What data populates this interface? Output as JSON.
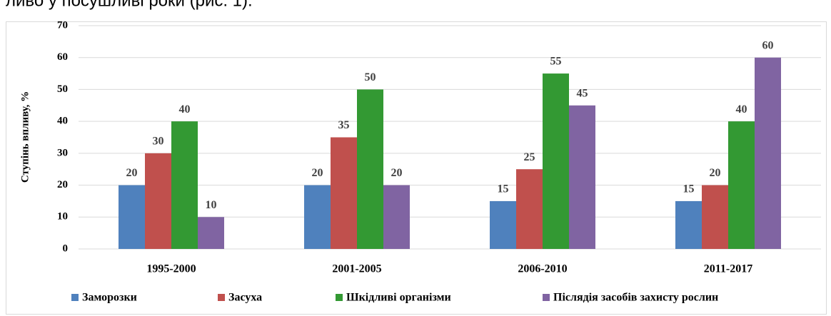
{
  "context_text": "ливо у посушливі роки (рис. 1).",
  "chart_data": {
    "type": "bar",
    "ylabel": "Ступінь впливу, %",
    "categories": [
      "1995-2000",
      "2001-2005",
      "2006-2010",
      "2011-2017"
    ],
    "series": [
      {
        "name": "Заморозки",
        "color": "#4f81bd",
        "values": [
          20,
          20,
          15,
          15
        ]
      },
      {
        "name": "Засуха",
        "color": "#c0504d",
        "values": [
          30,
          35,
          25,
          20
        ]
      },
      {
        "name": "Шкідливі організми",
        "color": "#339933",
        "values": [
          40,
          50,
          55,
          40
        ]
      },
      {
        "name": "Післядія засобів захисту рослин",
        "color": "#8064a2",
        "values": [
          10,
          20,
          45,
          60
        ]
      }
    ],
    "ylim": [
      0,
      70
    ],
    "yticks": [
      0,
      10,
      20,
      30,
      40,
      50,
      60,
      70
    ],
    "grid": true,
    "legend": "bottom"
  }
}
